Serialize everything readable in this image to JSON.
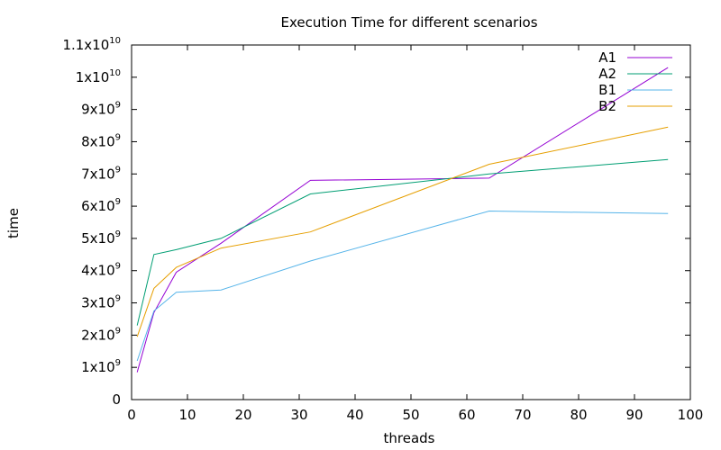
{
  "chart_data": {
    "type": "line",
    "title": "Execution Time for different scenarios",
    "xlabel": "threads",
    "ylabel": "time",
    "xlim": [
      0,
      100
    ],
    "ylim": [
      0,
      11000000000
    ],
    "grid": false,
    "legend_position": "top-right",
    "x_ticks": [
      {
        "value": 0,
        "label": "0"
      },
      {
        "value": 10,
        "label": "10"
      },
      {
        "value": 20,
        "label": "20"
      },
      {
        "value": 30,
        "label": "30"
      },
      {
        "value": 40,
        "label": "40"
      },
      {
        "value": 50,
        "label": "50"
      },
      {
        "value": 60,
        "label": "60"
      },
      {
        "value": 70,
        "label": "70"
      },
      {
        "value": 80,
        "label": "80"
      },
      {
        "value": 90,
        "label": "90"
      },
      {
        "value": 100,
        "label": "100"
      }
    ],
    "y_ticks": [
      {
        "value": 0,
        "base": "0",
        "exp": ""
      },
      {
        "value": 1000000000,
        "base": "1x10",
        "exp": "9"
      },
      {
        "value": 2000000000,
        "base": "2x10",
        "exp": "9"
      },
      {
        "value": 3000000000,
        "base": "3x10",
        "exp": "9"
      },
      {
        "value": 4000000000,
        "base": "4x10",
        "exp": "9"
      },
      {
        "value": 5000000000,
        "base": "5x10",
        "exp": "9"
      },
      {
        "value": 6000000000,
        "base": "6x10",
        "exp": "9"
      },
      {
        "value": 7000000000,
        "base": "7x10",
        "exp": "9"
      },
      {
        "value": 8000000000,
        "base": "8x10",
        "exp": "9"
      },
      {
        "value": 9000000000,
        "base": "9x10",
        "exp": "9"
      },
      {
        "value": 10000000000,
        "base": "1x10",
        "exp": "10"
      },
      {
        "value": 11000000000,
        "base": "1.1x10",
        "exp": "10"
      }
    ],
    "series": [
      {
        "name": "A1",
        "color": "#9400d3",
        "x": [
          1,
          4,
          8,
          16,
          32,
          64,
          96
        ],
        "y": [
          850000000,
          2700000000,
          3950000000,
          4850000000,
          6800000000,
          6870000000,
          10300000000
        ]
      },
      {
        "name": "A2",
        "color": "#009e73",
        "x": [
          1,
          4,
          8,
          16,
          32,
          64,
          96
        ],
        "y": [
          2300000000,
          4500000000,
          4650000000,
          5000000000,
          6380000000,
          7000000000,
          7450000000
        ]
      },
      {
        "name": "B1",
        "color": "#56b4e9",
        "x": [
          1,
          4,
          8,
          16,
          32,
          64,
          96
        ],
        "y": [
          1200000000,
          2750000000,
          3330000000,
          3400000000,
          4300000000,
          5850000000,
          5770000000
        ]
      },
      {
        "name": "B2",
        "color": "#e69f00",
        "x": [
          1,
          4,
          8,
          16,
          32,
          64,
          96
        ],
        "y": [
          1950000000,
          3450000000,
          4100000000,
          4700000000,
          5200000000,
          7300000000,
          8450000000
        ]
      }
    ]
  }
}
